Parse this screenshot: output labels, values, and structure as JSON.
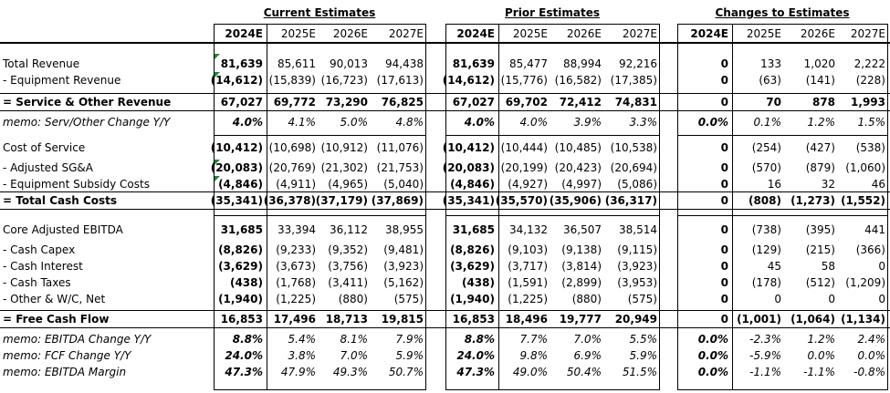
{
  "groups": [
    {
      "title": "Current Estimates",
      "years": [
        "2024E",
        "2025E",
        "2026E",
        "2027E"
      ]
    },
    {
      "title": "Prior Estimates",
      "years": [
        "2024E",
        "2025E",
        "2026E",
        "2027E"
      ]
    },
    {
      "title": "Changes to Estimates",
      "years": [
        "2024E",
        "2025E",
        "2026E",
        "2027E"
      ]
    }
  ],
  "rows": [
    {
      "label": "Total Revenue",
      "style": "normal",
      "cur": [
        "81,639",
        "85,611",
        "90,013",
        "94,438"
      ],
      "pri": [
        "81,639",
        "85,477",
        "88,994",
        "92,216"
      ],
      "chg": [
        "0",
        "133",
        "1,020",
        "2,222"
      ]
    },
    {
      "label": "- Equipment Revenue",
      "style": "normal",
      "cur": [
        "(14,612)",
        "(15,839)",
        "(16,723)",
        "(17,613)"
      ],
      "pri": [
        "(14,612)",
        "(15,776)",
        "(16,582)",
        "(17,385)"
      ],
      "chg": [
        "0",
        "(63)",
        "(141)",
        "(228)"
      ]
    },
    {
      "label": "= Service & Other Revenue",
      "style": "total",
      "cur": [
        "67,027",
        "69,772",
        "73,290",
        "76,825"
      ],
      "pri": [
        "67,027",
        "69,702",
        "72,412",
        "74,831"
      ],
      "chg": [
        "0",
        "70",
        "878",
        "1,993"
      ]
    },
    {
      "label": "memo: Serv/Other Change Y/Y",
      "style": "memo",
      "cur": [
        "4.0%",
        "4.1%",
        "5.0%",
        "4.8%"
      ],
      "pri": [
        "4.0%",
        "4.0%",
        "3.9%",
        "3.3%"
      ],
      "chg": [
        "0.0%",
        "0.1%",
        "1.2%",
        "1.5%"
      ]
    },
    {
      "label": "Cost of Service",
      "style": "normal",
      "cur": [
        "(10,412)",
        "(10,698)",
        "(10,912)",
        "(11,076)"
      ],
      "pri": [
        "(10,412)",
        "(10,444)",
        "(10,485)",
        "(10,538)"
      ],
      "chg": [
        "0",
        "(254)",
        "(427)",
        "(538)"
      ]
    },
    {
      "label": "- Adjusted SG&A",
      "style": "normal",
      "cur": [
        "(20,083)",
        "(20,769)",
        "(21,302)",
        "(21,753)"
      ],
      "pri": [
        "(20,083)",
        "(20,199)",
        "(20,423)",
        "(20,694)"
      ],
      "chg": [
        "0",
        "(570)",
        "(879)",
        "(1,060)"
      ]
    },
    {
      "label": "- Equipment Subsidy Costs",
      "style": "normal",
      "cur": [
        "(4,846)",
        "(4,911)",
        "(4,965)",
        "(5,040)"
      ],
      "pri": [
        "(4,846)",
        "(4,927)",
        "(4,997)",
        "(5,086)"
      ],
      "chg": [
        "0",
        "16",
        "32",
        "46"
      ]
    },
    {
      "label": "= Total Cash Costs",
      "style": "total",
      "cur": [
        "(35,341)",
        "(36,378)",
        "(37,179)",
        "(37,869)"
      ],
      "pri": [
        "(35,341)",
        "(35,570)",
        "(35,906)",
        "(36,317)"
      ],
      "chg": [
        "0",
        "(808)",
        "(1,273)",
        "(1,552)"
      ]
    },
    {
      "label": "Core Adjusted EBITDA",
      "style": "normal",
      "cur": [
        "31,685",
        "33,394",
        "36,112",
        "38,955"
      ],
      "pri": [
        "31,685",
        "34,132",
        "36,507",
        "38,514"
      ],
      "chg": [
        "0",
        "(738)",
        "(395)",
        "441"
      ]
    },
    {
      "label": "- Cash Capex",
      "style": "normal",
      "cur": [
        "(8,826)",
        "(9,233)",
        "(9,352)",
        "(9,481)"
      ],
      "pri": [
        "(8,826)",
        "(9,103)",
        "(9,138)",
        "(9,115)"
      ],
      "chg": [
        "0",
        "(129)",
        "(215)",
        "(366)"
      ]
    },
    {
      "label": "- Cash Interest",
      "style": "normal",
      "cur": [
        "(3,629)",
        "(3,673)",
        "(3,756)",
        "(3,923)"
      ],
      "pri": [
        "(3,629)",
        "(3,717)",
        "(3,814)",
        "(3,923)"
      ],
      "chg": [
        "0",
        "45",
        "58",
        "0"
      ]
    },
    {
      "label": "- Cash Taxes",
      "style": "normal",
      "cur": [
        "(438)",
        "(1,768)",
        "(3,411)",
        "(5,162)"
      ],
      "pri": [
        "(438)",
        "(1,591)",
        "(2,899)",
        "(3,953)"
      ],
      "chg": [
        "0",
        "(178)",
        "(512)",
        "(1,209)"
      ]
    },
    {
      "label": "- Other & W/C, Net",
      "style": "normal",
      "cur": [
        "(1,940)",
        "(1,225)",
        "(880)",
        "(575)"
      ],
      "pri": [
        "(1,940)",
        "(1,225)",
        "(880)",
        "(575)"
      ],
      "chg": [
        "0",
        "0",
        "0",
        "0"
      ]
    },
    {
      "label": "= Free Cash Flow",
      "style": "total",
      "cur": [
        "16,853",
        "17,496",
        "18,713",
        "19,815"
      ],
      "pri": [
        "16,853",
        "18,496",
        "19,777",
        "20,949"
      ],
      "chg": [
        "0",
        "(1,001)",
        "(1,064)",
        "(1,134)"
      ]
    },
    {
      "label": "memo: EBITDA Change Y/Y",
      "style": "memo",
      "cur": [
        "8.8%",
        "5.4%",
        "8.1%",
        "7.9%"
      ],
      "pri": [
        "8.8%",
        "7.7%",
        "7.0%",
        "5.5%"
      ],
      "chg": [
        "0.0%",
        "-2.3%",
        "1.2%",
        "2.4%"
      ]
    },
    {
      "label": "memo: FCF Change Y/Y",
      "style": "memo",
      "cur": [
        "24.0%",
        "3.8%",
        "7.0%",
        "5.9%"
      ],
      "pri": [
        "24.0%",
        "9.8%",
        "6.9%",
        "5.9%"
      ],
      "chg": [
        "0.0%",
        "-5.9%",
        "0.0%",
        "0.0%"
      ]
    },
    {
      "label": "memo: EBITDA Margin",
      "style": "memo",
      "cur": [
        "47.3%",
        "47.9%",
        "49.3%",
        "50.7%"
      ],
      "pri": [
        "47.3%",
        "49.0%",
        "50.4%",
        "51.5%"
      ],
      "chg": [
        "0.0%",
        "-1.1%",
        "-1.1%",
        "-0.8%"
      ]
    }
  ],
  "colors": {
    "comment_marker": "#1b8a2c",
    "text": "#000000",
    "background": "#ffffff"
  }
}
